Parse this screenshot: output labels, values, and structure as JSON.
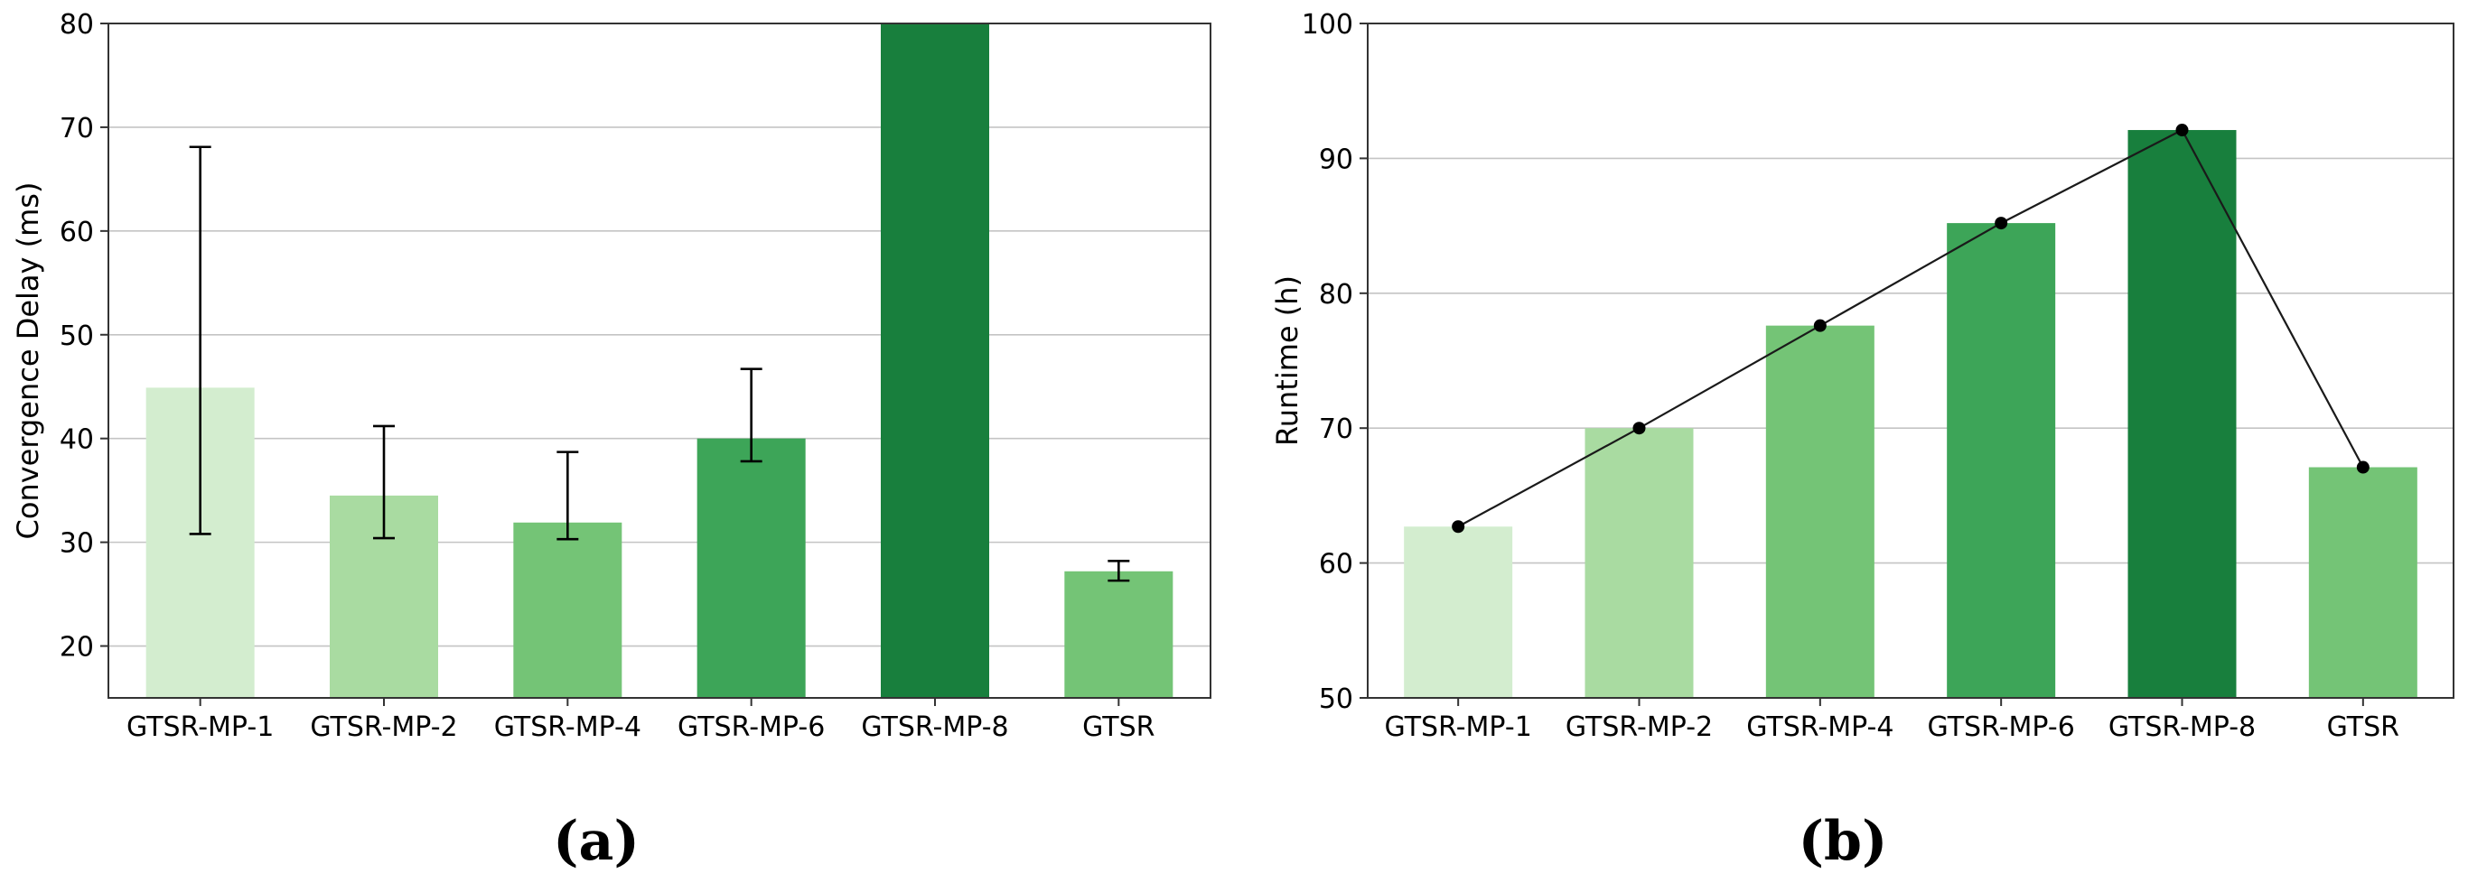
{
  "chart_data": [
    {
      "type": "bar",
      "panel_label": "(a)",
      "categories": [
        "GTSR-MP-1",
        "GTSR-MP-2",
        "GTSR-MP-4",
        "GTSR-MP-6",
        "GTSR-MP-8",
        "GTSR"
      ],
      "values": [
        44.9,
        34.5,
        31.9,
        40.0,
        80,
        27.2
      ],
      "error_low": [
        30.8,
        30.4,
        30.3,
        37.8,
        null,
        26.3
      ],
      "error_high": [
        68.1,
        41.2,
        38.7,
        46.7,
        null,
        28.2
      ],
      "colors": [
        "#d3edcf",
        "#a9dba1",
        "#74c476",
        "#3da558",
        "#187f3d",
        "#74c476"
      ],
      "xlabel": "",
      "ylabel": "Convergence Delay (ms)",
      "ylim": [
        15,
        80
      ],
      "yticks": [
        20,
        30,
        40,
        50,
        60,
        70,
        80
      ],
      "grid": "horizontal"
    },
    {
      "type": "bar",
      "panel_label": "(b)",
      "categories": [
        "GTSR-MP-1",
        "GTSR-MP-2",
        "GTSR-MP-4",
        "GTSR-MP-6",
        "GTSR-MP-8",
        "GTSR"
      ],
      "values": [
        62.7,
        70.0,
        77.6,
        85.2,
        92.1,
        67.1
      ],
      "line_overlay": true,
      "colors": [
        "#d3edcf",
        "#a9dba1",
        "#74c476",
        "#3da558",
        "#187f3d",
        "#74c476"
      ],
      "xlabel": "",
      "ylabel": "Runtime (h)",
      "ylim": [
        50,
        100
      ],
      "yticks": [
        50,
        60,
        70,
        80,
        90,
        100
      ],
      "grid": "horizontal"
    }
  ]
}
